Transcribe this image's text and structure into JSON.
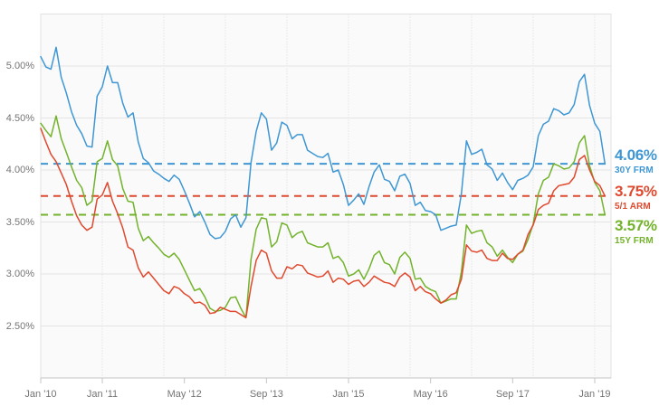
{
  "chart_data": {
    "type": "line",
    "title": "",
    "xlabel": "",
    "ylabel": "",
    "x_unit": "months since 2010-01",
    "ylim": [
      2.0,
      5.5
    ],
    "grid": true,
    "legend_position": "right",
    "y_ticks": [
      {
        "label": "5.00%",
        "value": 5.0
      },
      {
        "label": "4.50%",
        "value": 4.5
      },
      {
        "label": "4.00%",
        "value": 4.0
      },
      {
        "label": "3.50%",
        "value": 3.5
      },
      {
        "label": "3.00%",
        "value": 3.0
      },
      {
        "label": "2.50%",
        "value": 2.5
      }
    ],
    "x_ticks": [
      {
        "label": "Jan '10",
        "month": 0
      },
      {
        "label": "Jan '11",
        "month": 12
      },
      {
        "label": "May '12",
        "month": 28
      },
      {
        "label": "Sep '13",
        "month": 44
      },
      {
        "label": "Jan '15",
        "month": 60
      },
      {
        "label": "May '16",
        "month": 76
      },
      {
        "label": "Sep '17",
        "month": 92
      },
      {
        "label": "Jan '19",
        "month": 108
      }
    ],
    "x_gridline_months": [
      0,
      12,
      24,
      36,
      48,
      60,
      72,
      84,
      96,
      108
    ],
    "colors": {
      "plot_bg": "#fafafa",
      "plot_border": "#e2e2e2",
      "axis_line": "#c4c4c4",
      "hgrid": "#e4e4e4",
      "vgrid": "#d8d8d8",
      "tick": "#c4c4c4",
      "axis_text": "#757575"
    },
    "series": [
      {
        "name": "30Y FRM",
        "color": "#3e97d4",
        "current_label": "4.06%",
        "current_value": 4.06,
        "values": [
          5.09,
          4.99,
          4.97,
          5.18,
          4.89,
          4.74,
          4.56,
          4.43,
          4.35,
          4.23,
          4.22,
          4.71,
          4.8,
          5.0,
          4.84,
          4.84,
          4.64,
          4.51,
          4.55,
          4.27,
          4.11,
          4.07,
          3.99,
          3.96,
          3.92,
          3.89,
          3.95,
          3.91,
          3.8,
          3.68,
          3.55,
          3.6,
          3.5,
          3.38,
          3.34,
          3.35,
          3.41,
          3.53,
          3.57,
          3.45,
          3.54,
          4.07,
          4.37,
          4.55,
          4.49,
          4.19,
          4.26,
          4.46,
          4.43,
          4.3,
          4.34,
          4.34,
          4.19,
          4.16,
          4.13,
          4.12,
          4.16,
          3.98,
          4.0,
          3.86,
          3.66,
          3.71,
          3.77,
          3.67,
          3.84,
          3.98,
          4.05,
          3.91,
          3.89,
          3.8,
          3.94,
          3.96,
          3.87,
          3.66,
          3.69,
          3.61,
          3.6,
          3.57,
          3.42,
          3.44,
          3.46,
          3.47,
          3.77,
          4.28,
          4.15,
          4.17,
          4.2,
          4.05,
          4.01,
          3.9,
          3.97,
          3.88,
          3.81,
          3.9,
          3.92,
          3.95,
          4.03,
          4.33,
          4.44,
          4.47,
          4.59,
          4.57,
          4.53,
          4.55,
          4.63,
          4.85,
          4.92,
          4.62,
          4.45,
          4.37,
          4.06
        ]
      },
      {
        "name": "5/1 ARM",
        "color": "#e0492e",
        "current_label": "3.75%",
        "current_value": 3.75,
        "values": [
          4.4,
          4.27,
          4.15,
          4.08,
          3.97,
          3.86,
          3.7,
          3.56,
          3.47,
          3.42,
          3.45,
          3.72,
          3.76,
          3.88,
          3.7,
          3.58,
          3.44,
          3.26,
          3.23,
          3.06,
          2.97,
          3.02,
          2.96,
          2.9,
          2.84,
          2.81,
          2.88,
          2.86,
          2.81,
          2.78,
          2.72,
          2.73,
          2.7,
          2.62,
          2.63,
          2.68,
          2.66,
          2.64,
          2.64,
          2.61,
          2.58,
          2.88,
          3.13,
          3.23,
          3.2,
          3.03,
          2.96,
          2.96,
          3.07,
          3.05,
          3.09,
          3.08,
          3.01,
          2.99,
          2.97,
          2.98,
          3.03,
          2.92,
          2.96,
          2.95,
          2.9,
          2.93,
          2.94,
          2.88,
          2.92,
          2.98,
          2.95,
          2.92,
          2.91,
          2.88,
          2.97,
          3.01,
          2.97,
          2.84,
          2.88,
          2.83,
          2.81,
          2.76,
          2.72,
          2.75,
          2.8,
          2.82,
          2.95,
          3.28,
          3.22,
          3.21,
          3.23,
          3.15,
          3.13,
          3.13,
          3.2,
          3.15,
          3.14,
          3.19,
          3.23,
          3.38,
          3.47,
          3.62,
          3.66,
          3.68,
          3.8,
          3.85,
          3.86,
          3.87,
          3.93,
          4.1,
          4.14,
          4.0,
          3.89,
          3.85,
          3.75
        ]
      },
      {
        "name": "15Y FRM",
        "color": "#72b32b",
        "current_label": "3.57%",
        "current_value": 3.57,
        "values": [
          4.45,
          4.38,
          4.32,
          4.52,
          4.3,
          4.17,
          4.03,
          3.9,
          3.83,
          3.66,
          3.7,
          4.08,
          4.11,
          4.28,
          4.1,
          4.04,
          3.82,
          3.7,
          3.69,
          3.44,
          3.32,
          3.36,
          3.3,
          3.25,
          3.19,
          3.16,
          3.2,
          3.14,
          3.04,
          2.94,
          2.84,
          2.86,
          2.78,
          2.67,
          2.64,
          2.65,
          2.68,
          2.77,
          2.78,
          2.67,
          2.58,
          3.14,
          3.43,
          3.54,
          3.53,
          3.26,
          3.31,
          3.49,
          3.47,
          3.35,
          3.39,
          3.41,
          3.3,
          3.28,
          3.26,
          3.26,
          3.3,
          3.15,
          3.17,
          3.11,
          2.98,
          3.0,
          3.04,
          2.95,
          3.05,
          3.18,
          3.22,
          3.11,
          3.09,
          3.0,
          3.16,
          3.21,
          3.15,
          2.95,
          2.96,
          2.88,
          2.85,
          2.83,
          2.72,
          2.74,
          2.76,
          2.76,
          3.02,
          3.47,
          3.39,
          3.41,
          3.42,
          3.3,
          3.26,
          3.17,
          3.23,
          3.16,
          3.11,
          3.19,
          3.22,
          3.33,
          3.48,
          3.77,
          3.9,
          3.93,
          4.06,
          4.04,
          4.01,
          4.02,
          4.08,
          4.26,
          4.33,
          4.04,
          3.88,
          3.8,
          3.57
        ]
      }
    ]
  }
}
